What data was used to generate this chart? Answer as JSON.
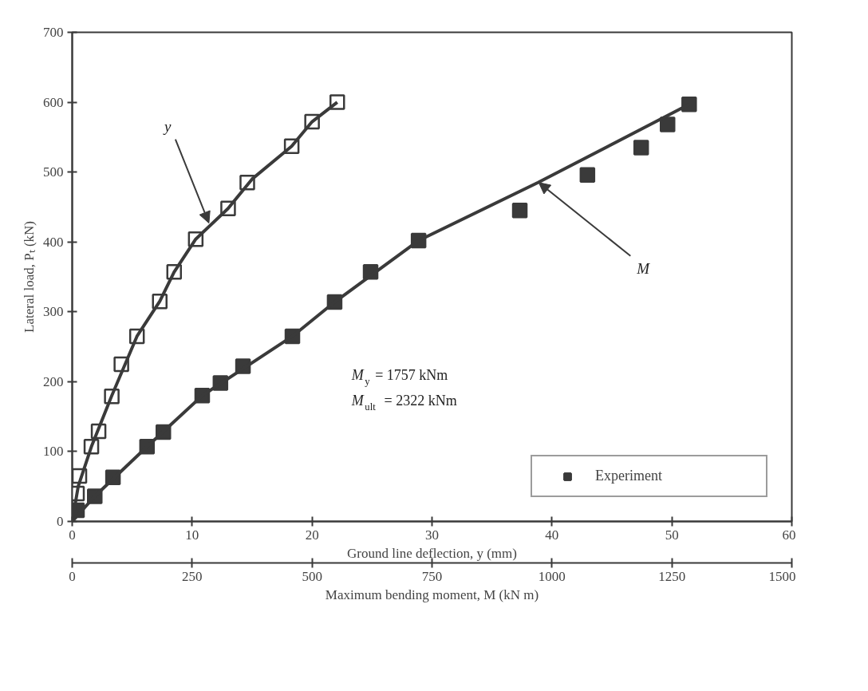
{
  "chart_data": {
    "type": "scatter",
    "xlabel": "Ground line deflection, y (mm)",
    "x2label": "Maximum bending moment, M (kN m)",
    "ylabel": "Lateral load, Pₜ (kN)",
    "xlim": [
      0,
      60
    ],
    "xticks": [
      0,
      10,
      20,
      30,
      40,
      50,
      60
    ],
    "x2lim": [
      0,
      1500
    ],
    "x2ticks": [
      0,
      250,
      500,
      750,
      1000,
      1250,
      1500
    ],
    "ylim": [
      0,
      700
    ],
    "yticks": [
      0,
      100,
      200,
      300,
      400,
      500,
      600,
      700
    ],
    "grid": false,
    "legend": "bottom right",
    "marker": "square",
    "series": [
      {
        "name": "Experiment",
        "color": "#ffffff",
        "x": [
          0.4,
          0.6,
          1.6,
          2.2,
          3.3,
          4.1,
          5.4,
          7.3,
          8.5,
          10.3,
          13.0,
          14.6,
          18.3,
          20.0,
          22.1
        ],
        "values": [
          40,
          65,
          107,
          129,
          179,
          225,
          265,
          315,
          357,
          404,
          448,
          485,
          537,
          572,
          600
        ]
      },
      {
        "axis": "x2",
        "color": "#3a3a3a",
        "x": [
          10,
          47,
          85,
          156,
          190,
          271,
          309,
          356,
          459,
          547,
          622,
          722,
          933,
          1074,
          1186,
          1241,
          1286
        ],
        "values": [
          16,
          36,
          63,
          107,
          128,
          180,
          198,
          222,
          265,
          314,
          357,
          402,
          445,
          496,
          535,
          568,
          597
        ]
      },
      {
        "type": "line",
        "marker": "none",
        "color": "#3a3a3a",
        "x": [
          0,
          0.5,
          1.6,
          3.3,
          5.4,
          7.3,
          8.5,
          10.3,
          13.0,
          15.0,
          18.3,
          20.0,
          22.1
        ],
        "values": [
          0,
          50,
          107,
          180,
          265,
          315,
          357,
          404,
          448,
          490,
          537,
          572,
          600
        ]
      },
      {
        "type": "line",
        "marker": "none",
        "axis": "x2",
        "color": "#3a3a3a",
        "x": [
          0,
          47,
          156,
          271,
          459,
          547,
          722,
          971,
          1286
        ],
        "values": [
          0,
          36,
          107,
          180,
          265,
          314,
          402,
          485,
          597
        ]
      }
    ],
    "annotations": [
      {
        "text": "y",
        "x": 11.4,
        "y": 427
      },
      {
        "text": "M",
        "x": 38.9,
        "y": 485
      },
      "M$_{y}$ = 1757 kNm",
      "M$_{ult}$ = 2322 kNm"
    ]
  }
}
